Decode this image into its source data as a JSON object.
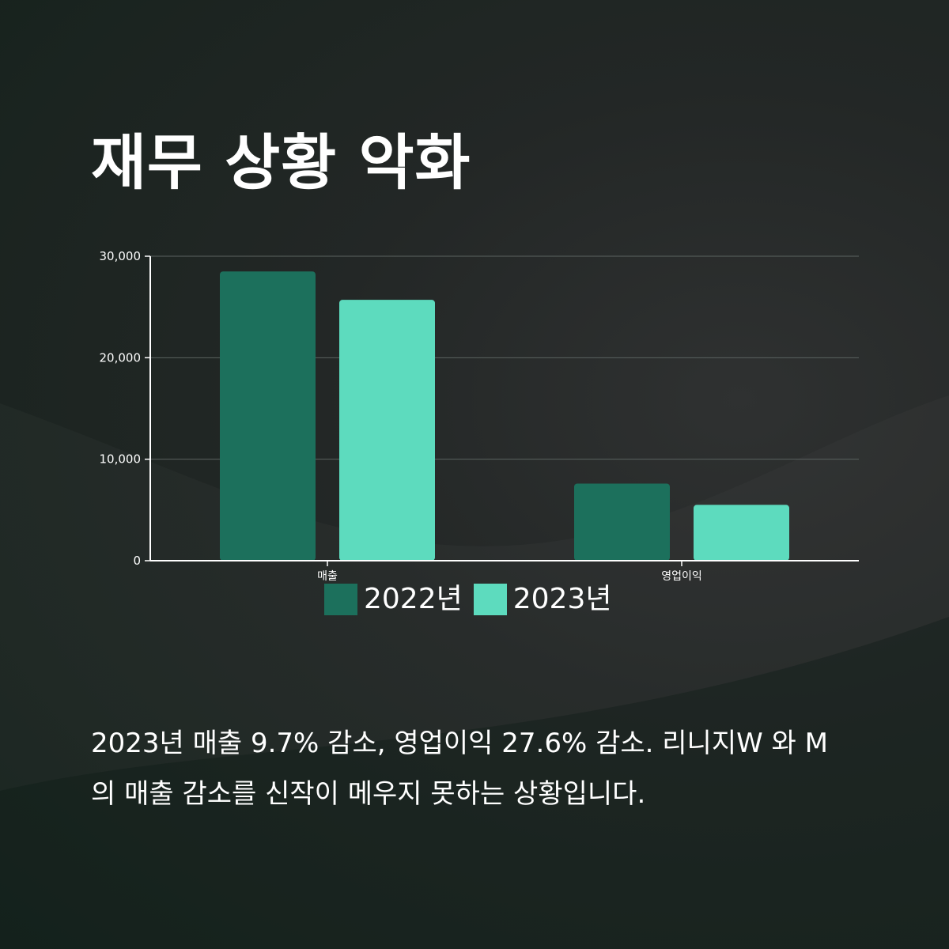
{
  "title": "재무 상황 악화",
  "chart_data": {
    "type": "bar",
    "categories": [
      "매출",
      "영업이익"
    ],
    "series": [
      {
        "name": "2022년",
        "values": [
          28500,
          7600
        ],
        "color": "#1c705c"
      },
      {
        "name": "2023년",
        "values": [
          25700,
          5500
        ],
        "color": "#5ddbbe"
      }
    ],
    "yticks": [
      0,
      10000,
      20000,
      30000
    ],
    "ytick_labels": [
      "0",
      "10,000",
      "20,000",
      "30,000"
    ],
    "ylim": [
      0,
      30000
    ],
    "grid": true,
    "legend_position": "bottom-center",
    "title": "",
    "xlabel": "",
    "ylabel": ""
  },
  "caption": "2023년 매출 9.7% 감소, 영업이익 27.6% 감소. 리니지W 와 M의 매출 감소를 신작이 메우지 못하는 상황입니다."
}
